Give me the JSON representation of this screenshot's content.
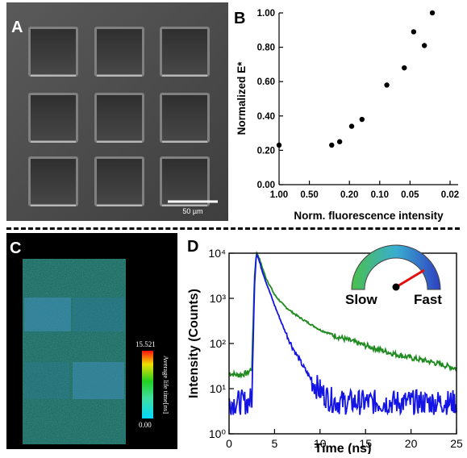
{
  "panel_labels": {
    "a": "A",
    "b": "B",
    "c": "C",
    "d": "D"
  },
  "sem": {
    "scale_bar_label": "50 µm",
    "grid_rows": 3,
    "grid_cols": 3
  },
  "colorbar": {
    "max_label": "15.521",
    "min_label": "0.00",
    "title": "Average life time[ns]"
  },
  "gauge": {
    "slow_label": "Slow",
    "fast_label": "Fast"
  },
  "chart_data": [
    {
      "panel": "B",
      "type": "scatter",
      "xlabel": "Norm. fluorescence intensity",
      "ylabel": "Normalized E*",
      "x_scale": "log",
      "x_reversed": true,
      "xlim": [
        1.0,
        0.02
      ],
      "ylim": [
        0.0,
        1.0
      ],
      "x_ticks": [
        1.0,
        0.5,
        0.2,
        0.1,
        0.05,
        0.02
      ],
      "x_tick_labels": [
        "1.00",
        "0.50",
        "0.20",
        "0.10",
        "0.05",
        "0.02"
      ],
      "y_ticks": [
        0.0,
        0.2,
        0.4,
        0.6,
        0.8,
        1.0
      ],
      "y_tick_labels": [
        "0.00",
        "0.20",
        "0.40",
        "0.60",
        "0.80",
        "1.00"
      ],
      "points": [
        {
          "x": 1.0,
          "y": 0.23
        },
        {
          "x": 0.3,
          "y": 0.23
        },
        {
          "x": 0.25,
          "y": 0.25
        },
        {
          "x": 0.19,
          "y": 0.34
        },
        {
          "x": 0.15,
          "y": 0.38
        },
        {
          "x": 0.085,
          "y": 0.58
        },
        {
          "x": 0.057,
          "y": 0.68
        },
        {
          "x": 0.046,
          "y": 0.89
        },
        {
          "x": 0.036,
          "y": 0.81
        },
        {
          "x": 0.03,
          "y": 1.0
        }
      ]
    },
    {
      "panel": "D",
      "type": "line",
      "xlabel": "Time (ns)",
      "ylabel": "Intensity (Counts)",
      "y_scale": "log",
      "xlim": [
        0,
        25
      ],
      "ylim": [
        1,
        10000
      ],
      "x_ticks": [
        0,
        5,
        10,
        15,
        20,
        25
      ],
      "x_tick_labels": [
        "0",
        "5",
        "10",
        "15",
        "20",
        "25"
      ],
      "y_ticks": [
        1,
        10,
        100,
        1000,
        10000
      ],
      "y_tick_labels": [
        "10⁰",
        "10¹",
        "10²",
        "10³",
        "10⁴"
      ],
      "series": [
        {
          "color": "#1f8a1f",
          "x": [
            0,
            1,
            2,
            2.5,
            2.8,
            3.0,
            3.2,
            3.5,
            4,
            5,
            6,
            7,
            8,
            10,
            12,
            15,
            18,
            20,
            22,
            25
          ],
          "y": [
            22,
            20,
            22,
            28,
            3000,
            10000,
            9000,
            6000,
            3000,
            1200,
            700,
            480,
            350,
            200,
            140,
            90,
            60,
            48,
            40,
            28
          ]
        },
        {
          "color": "#1414e6",
          "x": [
            0,
            1,
            2,
            2.5,
            2.8,
            3.0,
            3.2,
            3.5,
            4,
            5,
            6,
            7,
            8,
            9,
            10,
            11,
            12,
            15,
            20,
            25
          ],
          "y": [
            5,
            5,
            5,
            6,
            2000,
            10000,
            8000,
            5000,
            2500,
            700,
            220,
            80,
            35,
            16,
            9,
            6,
            5,
            5,
            5,
            5
          ]
        }
      ]
    }
  ]
}
